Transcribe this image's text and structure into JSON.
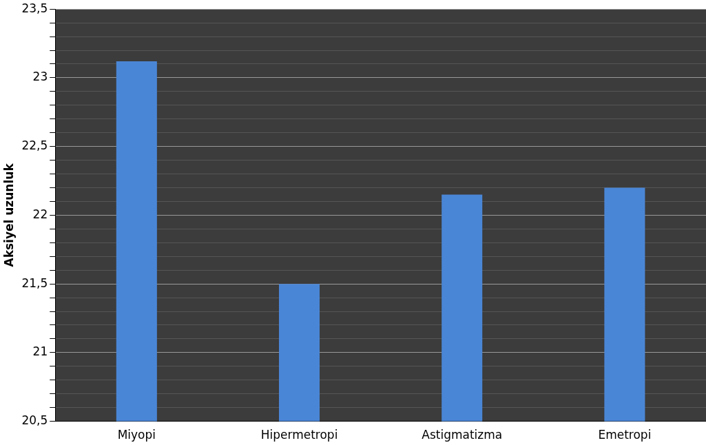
{
  "chart_data": {
    "type": "bar",
    "ylabel": "Aksiyel uzunluk",
    "categories": [
      "Miyopi",
      "Hipermetropi",
      "Astigmatizma",
      "Emetropi"
    ],
    "values": [
      23.12,
      21.5,
      22.15,
      22.2
    ],
    "color": "#4a86d6",
    "ylim": [
      20.5,
      23.5
    ],
    "yticks": [
      {
        "value": 20.5,
        "label": "20,5"
      },
      {
        "value": 20.6,
        "label": null
      },
      {
        "value": 20.7,
        "label": null
      },
      {
        "value": 20.8,
        "label": null
      },
      {
        "value": 20.9,
        "label": null
      },
      21,
      {
        "value": 21.1,
        "label": null
      },
      {
        "value": 21.2,
        "label": null
      },
      {
        "value": 21.3,
        "label": null
      },
      {
        "value": 21.4,
        "label": null
      },
      {
        "value": 21.5,
        "label": "21,5"
      },
      {
        "value": 21.6,
        "label": null
      },
      {
        "value": 21.7,
        "label": null
      },
      {
        "value": 21.8,
        "label": null
      },
      {
        "value": 21.9,
        "label": null
      },
      22,
      {
        "value": 22.1,
        "label": null
      },
      {
        "value": 22.2,
        "label": null
      },
      {
        "value": 22.3,
        "label": null
      },
      {
        "value": 22.4,
        "label": null
      },
      {
        "value": 22.5,
        "label": "22,5"
      },
      {
        "value": 22.6,
        "label": null
      },
      {
        "value": 22.7,
        "label": null
      },
      {
        "value": 22.8,
        "label": null
      },
      {
        "value": 22.9,
        "label": null
      },
      23,
      {
        "value": 23.1,
        "label": null
      },
      {
        "value": 23.2,
        "label": null
      },
      {
        "value": 23.3,
        "label": null
      },
      {
        "value": 23.4,
        "label": null
      },
      {
        "value": 23.5,
        "label": "23,5"
      }
    ],
    "grid": "y"
  }
}
